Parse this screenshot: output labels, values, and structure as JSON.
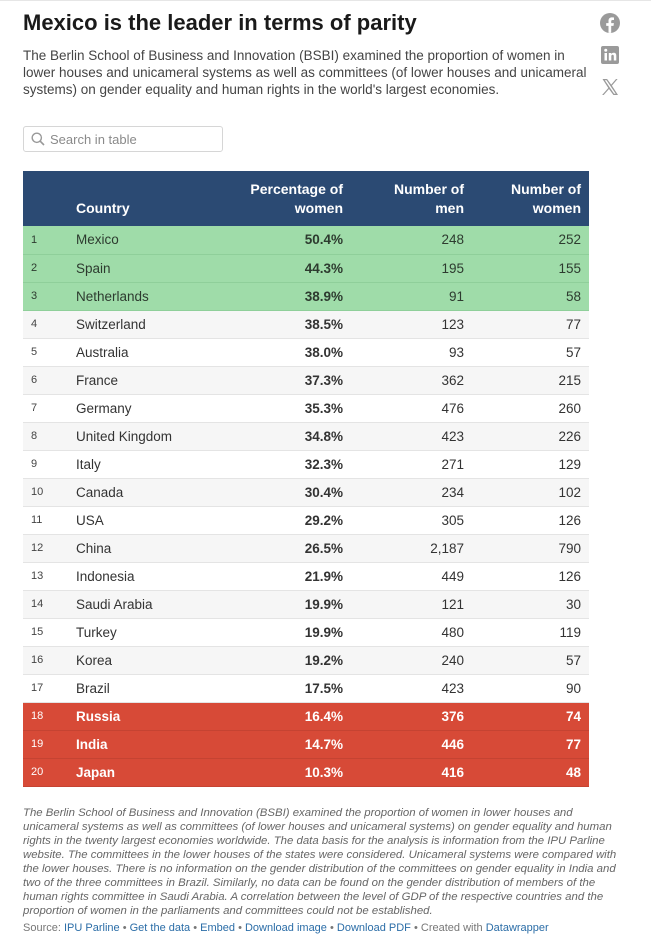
{
  "header": {
    "title": "Mexico is the leader in terms of parity",
    "description": "The Berlin School of Business and Innovation (BSBI) examined the proportion of women in lower houses and unicameral systems as well as committees (of lower houses and unicameral systems) on gender equality and human rights in the world's largest economies."
  },
  "share": {
    "icons": [
      "facebook-icon",
      "linkedin-icon",
      "x-icon"
    ]
  },
  "search": {
    "placeholder": "Search in table",
    "value": ""
  },
  "table": {
    "columns": [
      "",
      "Country",
      "Percentage of women",
      "Number of men",
      "Number of women"
    ],
    "rows": [
      {
        "rank": "1",
        "country": "Mexico",
        "pct": "50.4%",
        "men": "248",
        "women": "252"
      },
      {
        "rank": "2",
        "country": "Spain",
        "pct": "44.3%",
        "men": "195",
        "women": "155"
      },
      {
        "rank": "3",
        "country": "Netherlands",
        "pct": "38.9%",
        "men": "91",
        "women": "58"
      },
      {
        "rank": "4",
        "country": "Switzerland",
        "pct": "38.5%",
        "men": "123",
        "women": "77"
      },
      {
        "rank": "5",
        "country": "Australia",
        "pct": "38.0%",
        "men": "93",
        "women": "57"
      },
      {
        "rank": "6",
        "country": "France",
        "pct": "37.3%",
        "men": "362",
        "women": "215"
      },
      {
        "rank": "7",
        "country": "Germany",
        "pct": "35.3%",
        "men": "476",
        "women": "260"
      },
      {
        "rank": "8",
        "country": "United Kingdom",
        "pct": "34.8%",
        "men": "423",
        "women": "226"
      },
      {
        "rank": "9",
        "country": "Italy",
        "pct": "32.3%",
        "men": "271",
        "women": "129"
      },
      {
        "rank": "10",
        "country": "Canada",
        "pct": "30.4%",
        "men": "234",
        "women": "102"
      },
      {
        "rank": "11",
        "country": "USA",
        "pct": "29.2%",
        "men": "305",
        "women": "126"
      },
      {
        "rank": "12",
        "country": "China",
        "pct": "26.5%",
        "men": "2,187",
        "women": "790"
      },
      {
        "rank": "13",
        "country": "Indonesia",
        "pct": "21.9%",
        "men": "449",
        "women": "126"
      },
      {
        "rank": "14",
        "country": "Saudi Arabia",
        "pct": "19.9%",
        "men": "121",
        "women": "30"
      },
      {
        "rank": "15",
        "country": "Turkey",
        "pct": "19.9%",
        "men": "480",
        "women": "119"
      },
      {
        "rank": "16",
        "country": "Korea",
        "pct": "19.2%",
        "men": "240",
        "women": "57"
      },
      {
        "rank": "17",
        "country": "Brazil",
        "pct": "17.5%",
        "men": "423",
        "women": "90"
      },
      {
        "rank": "18",
        "country": "Russia",
        "pct": "16.4%",
        "men": "376",
        "women": "74"
      },
      {
        "rank": "19",
        "country": "India",
        "pct": "14.7%",
        "men": "446",
        "women": "77"
      },
      {
        "rank": "20",
        "country": "Japan",
        "pct": "10.3%",
        "men": "416",
        "women": "48"
      }
    ]
  },
  "notes": "The Berlin School of Business and Innovation (BSBI) examined the proportion of women in lower houses and unicameral systems as well as committees (of lower houses and unicameral systems) on gender equality and human rights in the twenty largest economies worldwide. The data basis for the analysis is information from the IPU Parline website. The committees in the lower houses of the states were considered. Unicameral systems were compared with the lower houses. There is no information on the gender distribution of the committees on gender equality in India and two of the three committees in Brazil. Similarly, no data can be found on the gender distribution of members of the human rights committee in Saudi Arabia. A correlation between the level of GDP of the respective countries and the proportion of women in the parliaments and committees could not be established.",
  "footer": {
    "source_label": "Source:",
    "source_link": "IPU Parline",
    "links": [
      "Get the data",
      "Embed",
      "Download image",
      "Download PDF"
    ],
    "created_with": "Created with",
    "created_link": "Datawrapper",
    "separator": "•"
  },
  "colors": {
    "header_bg": "#2b4a73",
    "top_highlight": "#9fdca9",
    "bottom_highlight": "#d74a37",
    "link": "#2b6da7"
  }
}
